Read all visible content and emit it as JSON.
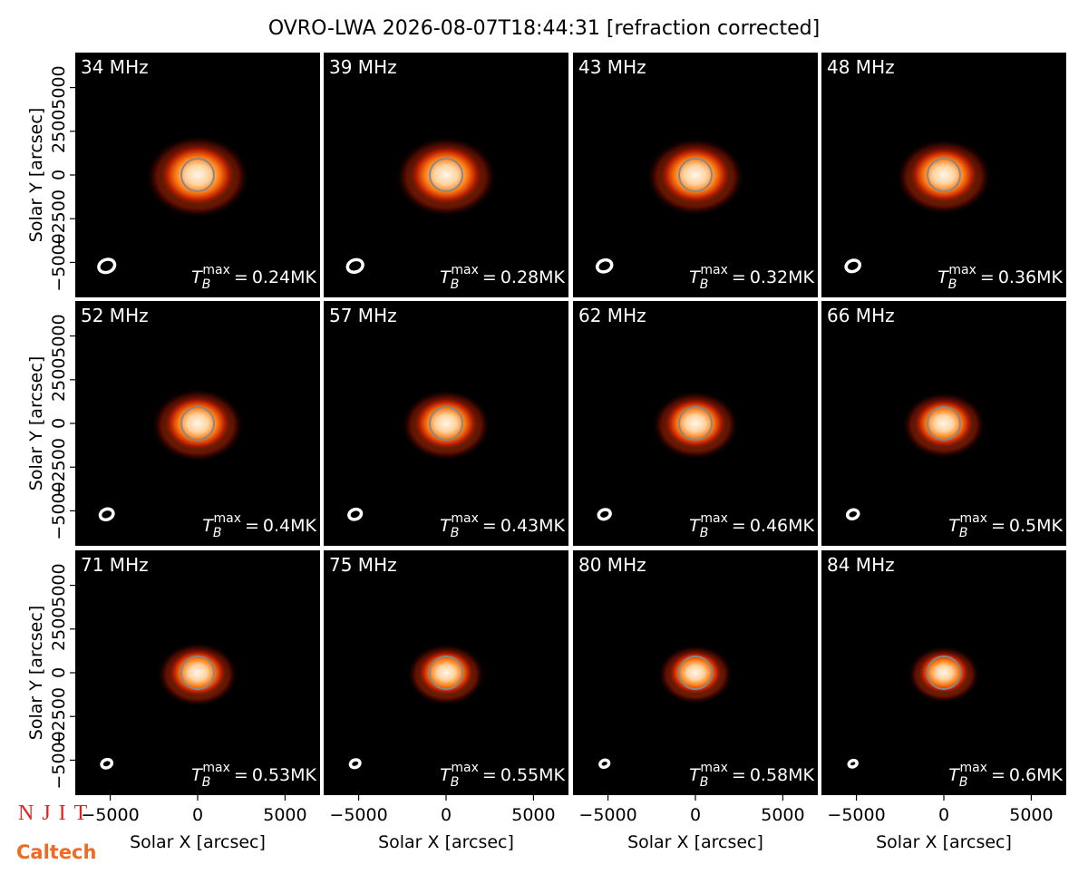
{
  "chart_data": {
    "type": "image-grid",
    "title": "OVRO-LWA 2026-08-07T18:44:31 [refraction corrected]",
    "x_label": "Solar X [arcsec]",
    "y_label": "Solar Y [arcsec]",
    "xlim": [
      -7000,
      7000
    ],
    "ylim": [
      -7000,
      7000
    ],
    "xticks": [
      {
        "value": -5000,
        "label": "−5000"
      },
      0,
      5000
    ],
    "yticks": [
      {
        "value": -5000,
        "label": "−5000"
      },
      {
        "value": -2500,
        "label": "−2500"
      },
      0,
      2500,
      5000
    ],
    "tb_symbol": "T",
    "tb_sub": "B",
    "tb_sup": "max",
    "tb_eq": "=",
    "panels": [
      {
        "freq": "34 MHz",
        "tb_max": "0.24MK"
      },
      {
        "freq": "39 MHz",
        "tb_max": "0.28MK"
      },
      {
        "freq": "43 MHz",
        "tb_max": "0.32MK"
      },
      {
        "freq": "48 MHz",
        "tb_max": "0.36MK"
      },
      {
        "freq": "52 MHz",
        "tb_max": "0.4MK"
      },
      {
        "freq": "57 MHz",
        "tb_max": "0.43MK"
      },
      {
        "freq": "62 MHz",
        "tb_max": "0.46MK"
      },
      {
        "freq": "66 MHz",
        "tb_max": "0.5MK"
      },
      {
        "freq": "71 MHz",
        "tb_max": "0.53MK"
      },
      {
        "freq": "75 MHz",
        "tb_max": "0.55MK"
      },
      {
        "freq": "80 MHz",
        "tb_max": "0.58MK"
      },
      {
        "freq": "84 MHz",
        "tb_max": "0.6MK"
      }
    ]
  },
  "logos": [
    "NJIT",
    "Caltech"
  ]
}
